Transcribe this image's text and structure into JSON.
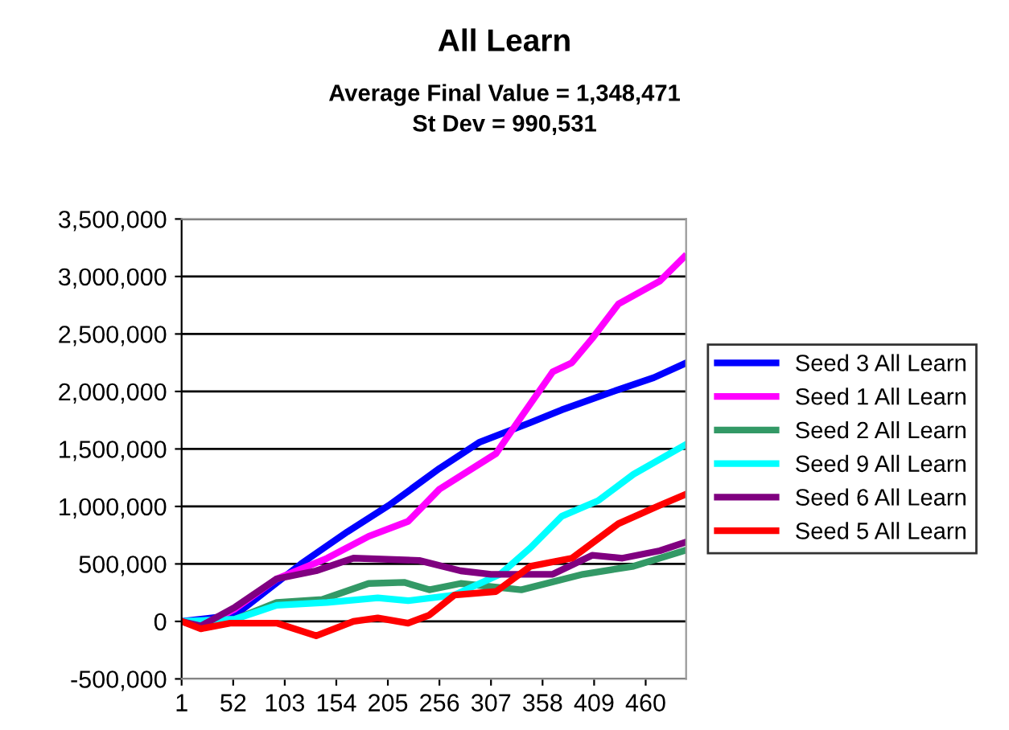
{
  "chart_data": {
    "type": "line",
    "title": "All Learn",
    "subtitle": "Average Final Value = 1,348,471\nSt Dev = 990,531",
    "xlim": [
      1,
      500
    ],
    "xticks": [
      1,
      52,
      103,
      154,
      205,
      256,
      307,
      358,
      409,
      460
    ],
    "ylim": [
      -500000,
      3500000
    ],
    "yticks": [
      {
        "value": -500000,
        "label": "-500,000"
      },
      {
        "value": 0,
        "label": "0"
      },
      {
        "value": 500000,
        "label": "500,000"
      },
      {
        "value": 1000000,
        "label": "1,000,000"
      },
      {
        "value": 1500000,
        "label": "1,500,000"
      },
      {
        "value": 2000000,
        "label": "2,000,000"
      },
      {
        "value": 2500000,
        "label": "2,500,000"
      },
      {
        "value": 3000000,
        "label": "3,000,000"
      },
      {
        "value": 3500000,
        "label": "3,500,000"
      }
    ],
    "grid": "y",
    "legend": "right",
    "marker": "none",
    "line_style": "solid",
    "series": [
      {
        "name": "Seed 3 All Learn",
        "color": "#0000ff",
        "x": [
          1,
          54,
          119,
          165,
          206,
          256,
          296,
          346,
          377,
          428,
          468,
          498
        ],
        "values": [
          0,
          55000,
          500000,
          780000,
          1010000,
          1330000,
          1560000,
          1730000,
          1840000,
          2000000,
          2120000,
          2240000
        ]
      },
      {
        "name": "Seed 1 All Learn",
        "color": "#ff00ff",
        "x": [
          1,
          20,
          54,
          95,
          145,
          186,
          225,
          256,
          312,
          337,
          368,
          387,
          407,
          433,
          474,
          498
        ],
        "values": [
          0,
          -50000,
          110000,
          370000,
          550000,
          740000,
          870000,
          1150000,
          1460000,
          1780000,
          2170000,
          2250000,
          2460000,
          2760000,
          2960000,
          3170000
        ]
      },
      {
        "name": "Seed 2 All Learn",
        "color": "#339966",
        "x": [
          1,
          20,
          54,
          95,
          140,
          186,
          221,
          246,
          277,
          337,
          398,
          448,
          498
        ],
        "values": [
          0,
          -50000,
          20000,
          165000,
          190000,
          330000,
          340000,
          275000,
          330000,
          275000,
          410000,
          480000,
          615000
        ]
      },
      {
        "name": "Seed 9 All Learn",
        "color": "#00ffff",
        "x": [
          1,
          54,
          95,
          145,
          195,
          225,
          271,
          316,
          346,
          377,
          413,
          448,
          498
        ],
        "values": [
          0,
          20000,
          140000,
          165000,
          205000,
          180000,
          230000,
          410000,
          640000,
          915000,
          1050000,
          1280000,
          1530000
        ]
      },
      {
        "name": "Seed 6 All Learn",
        "color": "#800080",
        "x": [
          1,
          20,
          54,
          95,
          134,
          171,
          236,
          277,
          307,
          368,
          407,
          437,
          474,
          498
        ],
        "values": [
          0,
          -40000,
          125000,
          370000,
          440000,
          550000,
          530000,
          440000,
          410000,
          410000,
          575000,
          550000,
          615000,
          685000
        ]
      },
      {
        "name": "Seed 5 All Learn",
        "color": "#ff0000",
        "x": [
          1,
          20,
          49,
          95,
          134,
          171,
          195,
          225,
          246,
          271,
          312,
          346,
          387,
          433,
          474,
          498
        ],
        "values": [
          0,
          -64000,
          -15000,
          -15000,
          -125000,
          0,
          30000,
          -15000,
          55000,
          230000,
          260000,
          480000,
          550000,
          850000,
          1010000,
          1100000
        ]
      }
    ]
  }
}
